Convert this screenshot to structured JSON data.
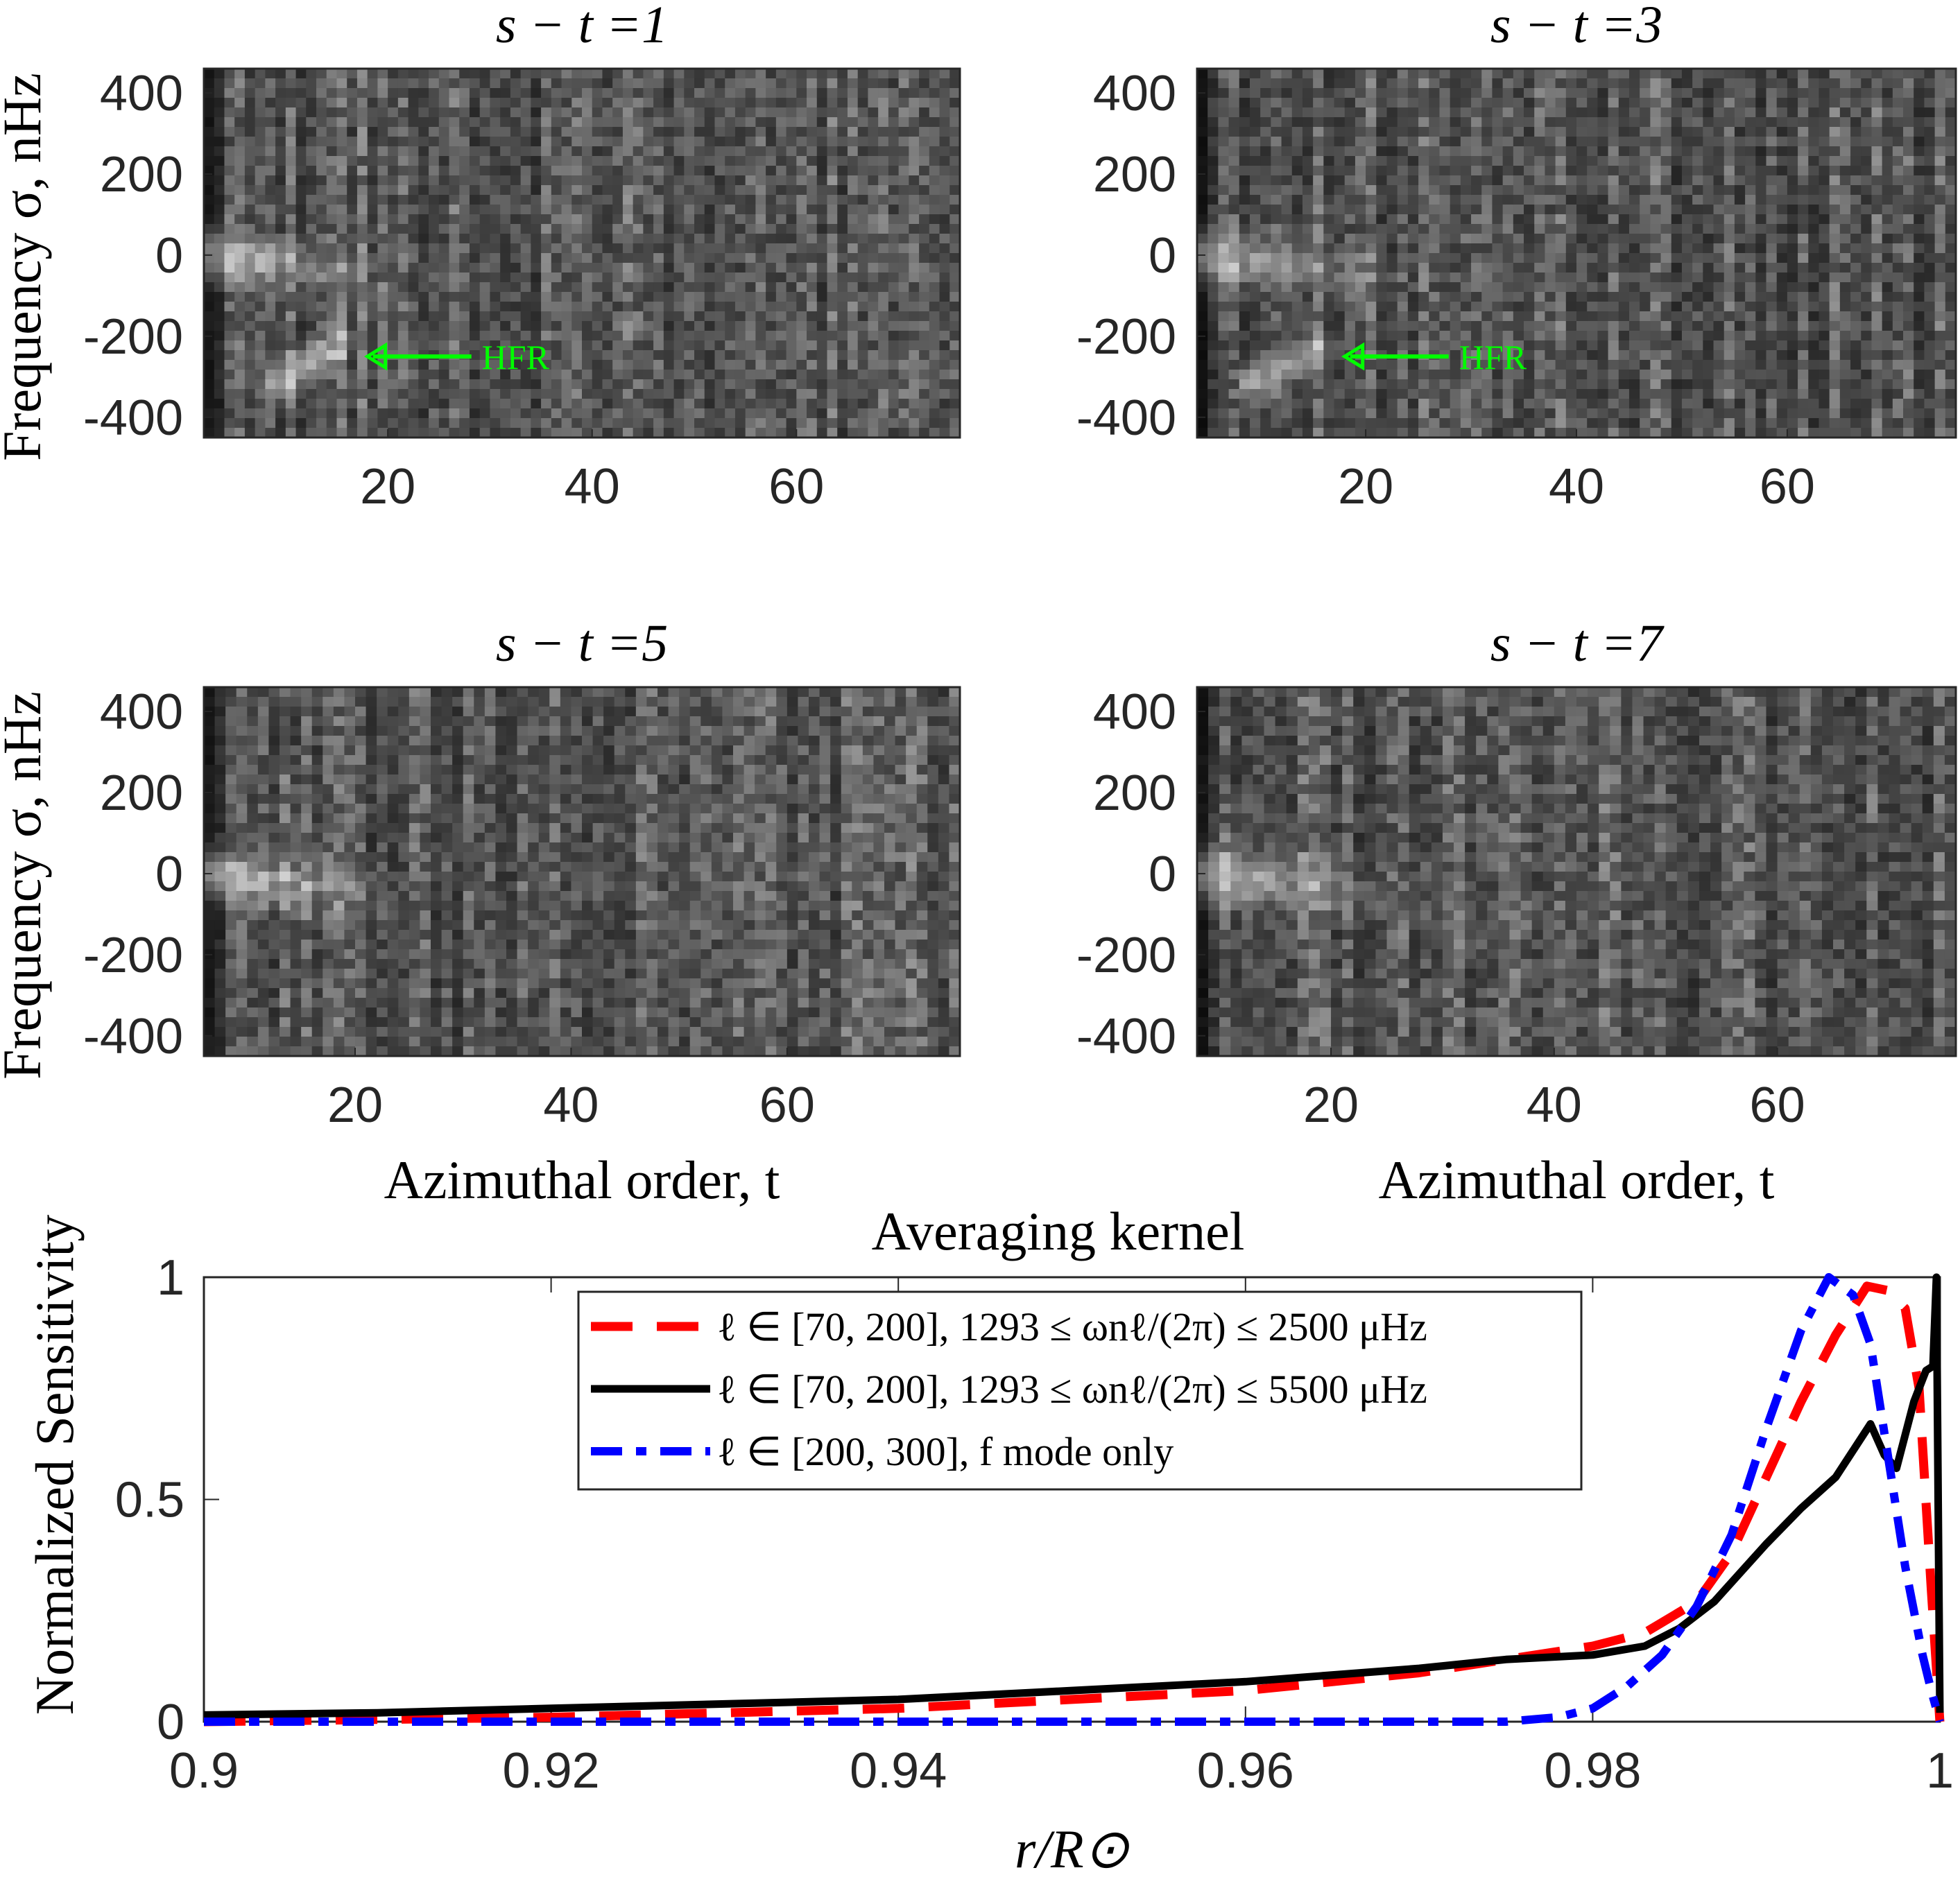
{
  "chart_data": [
    {
      "type": "heatmap",
      "title": "s − t =1",
      "xlabel": "",
      "ylabel": "Frequency σ, nHz",
      "xlim": [
        2,
        76
      ],
      "ylim": [
        -450,
        460
      ],
      "xticks": [
        "20",
        "40",
        "60"
      ],
      "yticks": [
        "400",
        "200",
        "0",
        "-200",
        "-400"
      ],
      "colormap": "gray",
      "annotation": "HFR",
      "annotation_target": {
        "t": 18,
        "sigma": -250
      }
    },
    {
      "type": "heatmap",
      "title": "s − t =3",
      "xlabel": "",
      "ylabel": "",
      "xlim": [
        4,
        76
      ],
      "ylim": [
        -450,
        460
      ],
      "xticks": [
        "20",
        "40",
        "60"
      ],
      "yticks": [
        "400",
        "200",
        "0",
        "-200",
        "-400"
      ],
      "colormap": "gray",
      "annotation": "HFR",
      "annotation_target": {
        "t": 18,
        "sigma": -250
      }
    },
    {
      "type": "heatmap",
      "title": "s − t =5",
      "xlabel": "Azimuthal order, t",
      "ylabel": "Frequency σ, nHz",
      "xlim": [
        6,
        76
      ],
      "ylim": [
        -450,
        460
      ],
      "xticks": [
        "20",
        "40",
        "60"
      ],
      "yticks": [
        "400",
        "200",
        "0",
        "-200",
        "-400"
      ],
      "colormap": "gray"
    },
    {
      "type": "heatmap",
      "title": "s − t =7",
      "xlabel": "Azimuthal order, t",
      "ylabel": "",
      "xlim": [
        8,
        76
      ],
      "ylim": [
        -450,
        460
      ],
      "xticks": [
        "20",
        "40",
        "60"
      ],
      "yticks": [
        "400",
        "200",
        "0",
        "-200",
        "-400"
      ],
      "colormap": "gray"
    },
    {
      "type": "line",
      "title": "Averaging kernel",
      "xlabel": "r/R⊙",
      "ylabel": "Normalized Sensitivity",
      "xlim": [
        0.9,
        1.0
      ],
      "ylim": [
        0,
        1
      ],
      "xticks": [
        "0.9",
        "0.92",
        "0.94",
        "0.96",
        "0.98",
        "1"
      ],
      "yticks": [
        "0",
        "0.5",
        "1"
      ],
      "legend_position": "top-center",
      "series": [
        {
          "name": "ℓ ∈ [70, 200], 1293 ≤ ωnℓ/(2π) ≤ 2500 μHz",
          "color": "#ff0000",
          "style": "dashed",
          "x": [
            0.9,
            0.91,
            0.92,
            0.93,
            0.94,
            0.95,
            0.96,
            0.97,
            0.975,
            0.98,
            0.983,
            0.986,
            0.988,
            0.99,
            0.992,
            0.994,
            0.9958,
            0.997,
            0.998,
            0.9988,
            0.9995,
            1.0
          ],
          "y": [
            0.0,
            0.005,
            0.01,
            0.02,
            0.03,
            0.05,
            0.07,
            0.11,
            0.14,
            0.17,
            0.2,
            0.27,
            0.38,
            0.55,
            0.72,
            0.87,
            0.98,
            0.97,
            0.93,
            0.75,
            0.3,
            0.0
          ]
        },
        {
          "name": "ℓ ∈ [70, 200], 1293 ≤ ωnℓ/(2π) ≤ 5500 μHz",
          "color": "#000000",
          "style": "solid",
          "x": [
            0.9,
            0.91,
            0.92,
            0.93,
            0.94,
            0.95,
            0.96,
            0.97,
            0.975,
            0.98,
            0.983,
            0.985,
            0.987,
            0.99,
            0.992,
            0.994,
            0.996,
            0.9968,
            0.9975,
            0.9985,
            0.9992,
            0.9996,
            0.9998,
            0.9999,
            1.0
          ],
          "y": [
            0.015,
            0.02,
            0.03,
            0.04,
            0.05,
            0.07,
            0.09,
            0.12,
            0.14,
            0.15,
            0.17,
            0.21,
            0.27,
            0.4,
            0.48,
            0.55,
            0.67,
            0.6,
            0.57,
            0.72,
            0.79,
            0.8,
            1.0,
            0.5,
            0.02
          ]
        },
        {
          "name": "ℓ ∈ [200, 300], f mode only",
          "color": "#0000ff",
          "style": "dashdot",
          "x": [
            0.9,
            0.95,
            0.975,
            0.978,
            0.98,
            0.982,
            0.984,
            0.986,
            0.988,
            0.99,
            0.992,
            0.9936,
            0.995,
            0.996,
            0.997,
            0.998,
            0.999,
            0.9995,
            1.0
          ],
          "y": [
            0.0,
            0.0,
            0.0,
            0.01,
            0.03,
            0.08,
            0.15,
            0.26,
            0.42,
            0.66,
            0.88,
            1.0,
            0.96,
            0.85,
            0.6,
            0.35,
            0.15,
            0.07,
            0.0
          ]
        }
      ]
    }
  ]
}
